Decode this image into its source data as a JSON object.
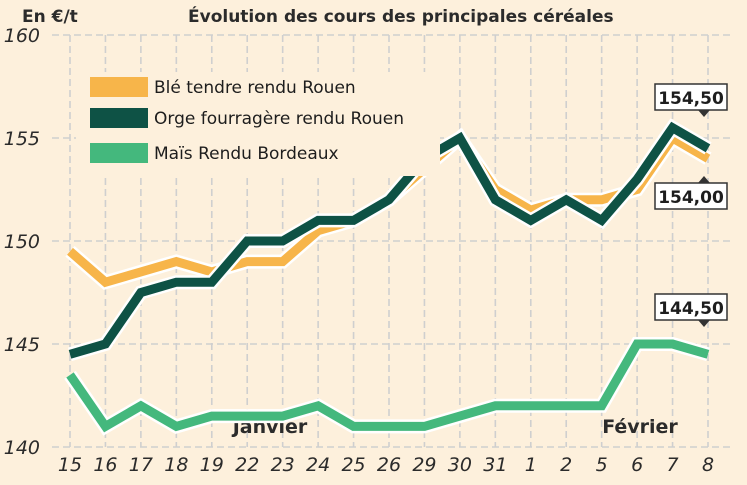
{
  "chart_data": {
    "type": "line",
    "title": "Évolution des cours des principales céréales",
    "unit_label": "En €/t",
    "categories": [
      "15",
      "16",
      "17",
      "18",
      "19",
      "22",
      "23",
      "24",
      "25",
      "26",
      "29",
      "30",
      "31",
      "1",
      "2",
      "5",
      "6",
      "7",
      "8"
    ],
    "month_labels": [
      "Janvier",
      "Février"
    ],
    "ylim": [
      140,
      160
    ],
    "yticks": [
      140,
      145,
      150,
      155,
      160
    ],
    "grid": true,
    "legend_position": "top-left",
    "series": [
      {
        "name": "Blé tendre rendu Rouen",
        "color": "#f7b54a",
        "values": [
          149.5,
          148,
          148.5,
          149,
          148.5,
          149,
          149,
          150.5,
          151,
          152,
          153.5,
          155,
          152.5,
          151.5,
          152,
          152,
          152.5,
          155,
          154
        ]
      },
      {
        "name": "Orge fourragère rendu Rouen",
        "color": "#0e5245",
        "values": [
          144.5,
          145,
          147.5,
          148,
          148,
          150,
          150,
          151,
          151,
          152,
          154,
          155,
          152,
          151,
          152,
          151,
          153,
          155.5,
          154.5
        ]
      },
      {
        "name": "Maïs Rendu Bordeaux",
        "color": "#44b87d",
        "values": [
          143.5,
          141,
          142,
          141,
          141.5,
          141.5,
          141.5,
          142,
          141,
          141,
          141,
          141.5,
          142,
          142,
          142,
          142,
          145,
          145,
          144.5
        ]
      }
    ],
    "callouts": [
      "154,50",
      "154,00",
      "144,50"
    ]
  }
}
